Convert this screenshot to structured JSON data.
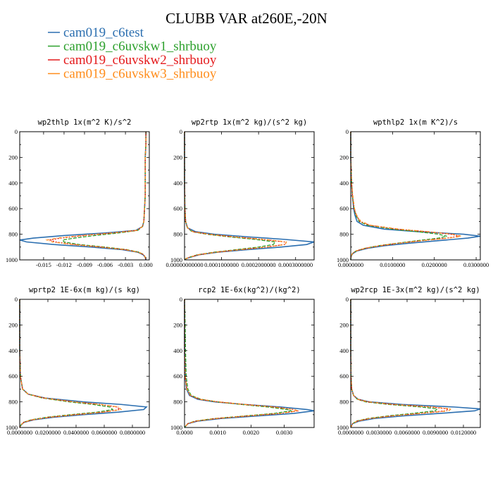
{
  "title": "CLUBB VAR at260E,-20N",
  "legend": [
    {
      "name": "cam019_c6test",
      "color": "#2c6fb0",
      "dash": ""
    },
    {
      "name": "cam019_c6uvskw1_shrbuoy",
      "color": "#2ca02c",
      "dash": "5,2"
    },
    {
      "name": "cam019_c6uvskw2_shrbuoy",
      "color": "#e41a1c",
      "dash": "2,2"
    },
    {
      "name": "cam019_c6uvskw3_shrbuoy",
      "color": "#ff8c1a",
      "dash": "4,2,1,2"
    }
  ],
  "chart_data": [
    {
      "type": "line",
      "title": "wp2thlp  1x(m^2 K)/s^2",
      "xlim": [
        -0.0185,
        0.0005
      ],
      "ylim": [
        1000,
        0
      ],
      "yticks": [
        0,
        200,
        400,
        600,
        800,
        1000
      ],
      "xticks": [
        -0.015,
        -0.012,
        -0.009,
        -0.006,
        -0.003,
        0.0
      ],
      "xtick_labels": [
        "-0.015",
        "-0.012",
        "-0.009",
        "-0.006",
        "-0.003",
        "0.000"
      ],
      "y": [
        0,
        100,
        200,
        300,
        400,
        500,
        600,
        700,
        740,
        770,
        790,
        810,
        830,
        845,
        860,
        880,
        900,
        920,
        940,
        960,
        980,
        1000
      ],
      "series": [
        {
          "name": "cam019_c6test",
          "values": [
            0.0,
            0.0,
            -0.0001,
            -0.0001,
            -0.0001,
            -0.0001,
            -0.0002,
            -0.0003,
            -0.0005,
            -0.0015,
            -0.006,
            -0.012,
            -0.0165,
            -0.0185,
            -0.0175,
            -0.0135,
            -0.008,
            -0.0035,
            -0.0012,
            -0.0004,
            -0.0001,
            0.0
          ]
        },
        {
          "name": "cam019_c6uvskw1_shrbuoy",
          "values": [
            0.0,
            0.0,
            -0.0001,
            -0.0001,
            -0.0001,
            -0.0001,
            -0.0002,
            -0.0003,
            -0.0005,
            -0.0012,
            -0.004,
            -0.0075,
            -0.0105,
            -0.0122,
            -0.012,
            -0.0098,
            -0.006,
            -0.0028,
            -0.001,
            -0.0003,
            -0.0001,
            0.0
          ]
        },
        {
          "name": "cam019_c6uvskw2_shrbuoy",
          "values": [
            0.0,
            0.0,
            -0.0001,
            -0.0001,
            -0.0001,
            -0.0001,
            -0.0002,
            -0.0003,
            -0.0005,
            -0.0013,
            -0.0048,
            -0.009,
            -0.0125,
            -0.014,
            -0.0133,
            -0.0105,
            -0.0065,
            -0.003,
            -0.0011,
            -0.0003,
            -0.0001,
            0.0
          ]
        },
        {
          "name": "cam019_c6uvskw3_shrbuoy",
          "values": [
            0.0,
            0.0,
            -0.0001,
            -0.0001,
            -0.0001,
            -0.0001,
            -0.0002,
            -0.0003,
            -0.0005,
            -0.0014,
            -0.005,
            -0.0095,
            -0.013,
            -0.0145,
            -0.0137,
            -0.0108,
            -0.0067,
            -0.0031,
            -0.0011,
            -0.0003,
            -0.0001,
            0.0
          ]
        }
      ]
    },
    {
      "type": "line",
      "title": "wp2rtp  1x(m^2 kg)/(s^2 kg)",
      "xlim": [
        0,
        0.00035
      ],
      "ylim": [
        1000,
        0
      ],
      "yticks": [
        0,
        200,
        400,
        600,
        800,
        1000
      ],
      "xticks": [
        0,
        0.0001,
        0.0002,
        0.0003
      ],
      "xtick_labels": [
        "0.00000000000",
        "0.0001000000",
        "0.0002000000",
        "0.0003000000"
      ],
      "y": [
        0,
        200,
        400,
        600,
        700,
        750,
        780,
        800,
        820,
        840,
        860,
        880,
        900,
        920,
        940,
        960,
        980,
        990,
        1000
      ],
      "series": [
        {
          "name": "cam019_c6test",
          "values": [
            0,
            0,
            0,
            1e-06,
            3e-06,
            8e-06,
            3e-05,
            8e-05,
            0.00017,
            0.00027,
            0.00035,
            0.00033,
            0.00026,
            0.00017,
            9e-05,
            4e-05,
            1.5e-05,
            5e-06,
            0.0
          ]
        },
        {
          "name": "cam019_c6uvskw1_shrbuoy",
          "values": [
            0,
            0,
            0,
            1e-06,
            3e-06,
            8e-06,
            2e-05,
            6e-05,
            0.00012,
            0.00019,
            0.000245,
            0.00024,
            0.0002,
            0.00014,
            8e-05,
            3.5e-05,
            1.2e-05,
            4e-06,
            0.0
          ]
        },
        {
          "name": "cam019_c6uvskw2_shrbuoy",
          "values": [
            0,
            0,
            0,
            1e-06,
            3e-06,
            8e-06,
            2.2e-05,
            6.5e-05,
            0.00013,
            0.00021,
            0.00027,
            0.00027,
            0.00022,
            0.00015,
            8.5e-05,
            3.7e-05,
            1.3e-05,
            4e-06,
            0.0
          ]
        },
        {
          "name": "cam019_c6uvskw3_shrbuoy",
          "values": [
            0,
            0,
            0,
            1e-06,
            3e-06,
            8e-06,
            2.3e-05,
            6.8e-05,
            0.000135,
            0.000215,
            0.000275,
            0.000272,
            0.000222,
            0.000152,
            8.6e-05,
            3.8e-05,
            1.3e-05,
            4e-06,
            0.0
          ]
        }
      ]
    },
    {
      "type": "line",
      "title": "wpthlp2  1x(m K^2)/s",
      "xlim": [
        0,
        0.031
      ],
      "ylim": [
        1000,
        0
      ],
      "yticks": [
        0,
        200,
        400,
        600,
        800,
        1000
      ],
      "xticks": [
        0,
        0.01,
        0.02,
        0.03
      ],
      "xtick_labels": [
        "0.0000000",
        "0.0100000",
        "0.0200000",
        "0.0300000"
      ],
      "y": [
        0,
        200,
        400,
        500,
        600,
        650,
        700,
        730,
        760,
        780,
        800,
        815,
        830,
        850,
        870,
        890,
        910,
        930,
        950,
        970,
        1000
      ],
      "series": [
        {
          "name": "cam019_c6test",
          "values": [
            0,
            0,
            0.0002,
            0.0004,
            0.0007,
            0.001,
            0.0015,
            0.003,
            0.008,
            0.016,
            0.027,
            0.031,
            0.028,
            0.021,
            0.014,
            0.008,
            0.004,
            0.0015,
            0.0005,
            0.0001,
            0
          ]
        },
        {
          "name": "cam019_c6uvskw1_shrbuoy",
          "values": [
            0,
            0,
            0.0002,
            0.0004,
            0.0008,
            0.0012,
            0.002,
            0.004,
            0.01,
            0.016,
            0.021,
            0.023,
            0.021,
            0.016,
            0.011,
            0.0065,
            0.0033,
            0.0013,
            0.0004,
            0.0001,
            0
          ]
        },
        {
          "name": "cam019_c6uvskw2_shrbuoy",
          "values": [
            0,
            0,
            0.0002,
            0.0004,
            0.0008,
            0.0013,
            0.0022,
            0.0045,
            0.011,
            0.018,
            0.024,
            0.026,
            0.023,
            0.017,
            0.0115,
            0.0068,
            0.0034,
            0.0013,
            0.0004,
            0.0001,
            0
          ]
        },
        {
          "name": "cam019_c6uvskw3_shrbuoy",
          "values": [
            0,
            0,
            0.0002,
            0.0005,
            0.0009,
            0.0014,
            0.0024,
            0.0048,
            0.0115,
            0.0185,
            0.0245,
            0.0265,
            0.0235,
            0.0172,
            0.0116,
            0.0069,
            0.0034,
            0.0013,
            0.0004,
            0.0001,
            0
          ]
        }
      ]
    },
    {
      "type": "line",
      "title": "wprtp2  1E-6x(m kg)/(s kg)",
      "xlim": [
        0,
        0.092
      ],
      "ylim": [
        1000,
        0
      ],
      "yticks": [
        0,
        200,
        400,
        600,
        800,
        1000
      ],
      "xticks": [
        0,
        0.02,
        0.04,
        0.06,
        0.08
      ],
      "xtick_labels": [
        "0.0000000",
        "0.0200000",
        "0.0400000",
        "0.0600000",
        "0.0800000"
      ],
      "y": [
        0,
        200,
        400,
        600,
        700,
        740,
        770,
        800,
        820,
        840,
        860,
        880,
        900,
        920,
        940,
        960,
        980,
        1000
      ],
      "series": [
        {
          "name": "cam019_c6test",
          "values": [
            0,
            0,
            0,
            0.0005,
            0.002,
            0.006,
            0.018,
            0.045,
            0.072,
            0.09,
            0.088,
            0.07,
            0.045,
            0.024,
            0.01,
            0.003,
            0.001,
            0
          ]
        },
        {
          "name": "cam019_c6uvskw1_shrbuoy",
          "values": [
            0,
            0,
            0,
            0.0005,
            0.002,
            0.006,
            0.016,
            0.035,
            0.052,
            0.064,
            0.066,
            0.055,
            0.036,
            0.019,
            0.008,
            0.0025,
            0.0008,
            0
          ]
        },
        {
          "name": "cam019_c6uvskw2_shrbuoy",
          "values": [
            0,
            0,
            0,
            0.0005,
            0.002,
            0.006,
            0.017,
            0.038,
            0.057,
            0.069,
            0.071,
            0.059,
            0.039,
            0.021,
            0.009,
            0.0028,
            0.0009,
            0
          ]
        },
        {
          "name": "cam019_c6uvskw3_shrbuoy",
          "values": [
            0,
            0,
            0,
            0.0005,
            0.002,
            0.006,
            0.0175,
            0.039,
            0.058,
            0.07,
            0.072,
            0.06,
            0.04,
            0.021,
            0.009,
            0.0028,
            0.0009,
            0
          ]
        }
      ]
    },
    {
      "type": "line",
      "title": "rcp2  1E-6x(kg^2)/(kg^2)",
      "xlim": [
        0,
        0.0039
      ],
      "ylim": [
        1000,
        0
      ],
      "yticks": [
        0,
        200,
        400,
        600,
        800,
        1000
      ],
      "xticks": [
        0,
        0.001,
        0.002,
        0.003
      ],
      "xtick_labels": [
        "0.0000",
        "0.0010",
        "0.0020",
        "0.0030"
      ],
      "y": [
        0,
        200,
        400,
        500,
        600,
        700,
        750,
        780,
        800,
        820,
        840,
        860,
        870,
        890,
        910,
        930,
        950,
        970,
        1000
      ],
      "series": [
        {
          "name": "cam019_c6test",
          "values": [
            0,
            0,
            0,
            1e-05,
            2e-05,
            6e-05,
            0.00015,
            0.0004,
            0.0009,
            0.0018,
            0.0029,
            0.0037,
            0.0039,
            0.0033,
            0.0022,
            0.0011,
            0.0004,
            0.0001,
            0
          ]
        },
        {
          "name": "cam019_c6uvskw1_shrbuoy",
          "values": [
            0,
            2e-05,
            3e-05,
            4e-05,
            5e-05,
            0.0001,
            0.0002,
            0.0005,
            0.001,
            0.0017,
            0.0025,
            0.0031,
            0.0032,
            0.0027,
            0.0018,
            0.0009,
            0.0003,
            0.0001,
            0
          ]
        },
        {
          "name": "cam019_c6uvskw2_shrbuoy",
          "values": [
            0,
            0,
            0,
            1e-05,
            2e-05,
            7e-05,
            0.00017,
            0.00045,
            0.001,
            0.0018,
            0.0027,
            0.0033,
            0.0034,
            0.0029,
            0.0019,
            0.00095,
            0.00035,
            0.0001,
            0
          ]
        },
        {
          "name": "cam019_c6uvskw3_shrbuoy",
          "values": [
            0,
            0,
            0,
            1e-05,
            2e-05,
            7e-05,
            0.00018,
            0.00046,
            0.001,
            0.0018,
            0.0027,
            0.0033,
            0.0034,
            0.0029,
            0.0019,
            0.00095,
            0.00035,
            0.0001,
            0
          ]
        }
      ]
    },
    {
      "type": "line",
      "title": "wp2rcp  1E-3x(m^2 kg)/(s^2 kg)",
      "xlim": [
        0,
        0.0138
      ],
      "ylim": [
        1000,
        0
      ],
      "yticks": [
        0,
        200,
        400,
        600,
        800,
        1000
      ],
      "xticks": [
        0,
        0.003,
        0.006,
        0.009,
        0.012
      ],
      "xtick_labels": [
        "0.0000000",
        "0.0030000",
        "0.0060000",
        "0.0090000",
        "0.0120000"
      ],
      "y": [
        0,
        200,
        400,
        600,
        700,
        750,
        780,
        800,
        820,
        840,
        855,
        870,
        890,
        910,
        930,
        950,
        970,
        1000
      ],
      "series": [
        {
          "name": "cam019_c6test",
          "values": [
            0,
            0,
            0,
            3e-05,
            0.0001,
            0.0003,
            0.0008,
            0.002,
            0.0055,
            0.011,
            0.0138,
            0.0132,
            0.0095,
            0.0055,
            0.0025,
            0.0009,
            0.0002,
            0
          ]
        },
        {
          "name": "cam019_c6uvskw1_shrbuoy",
          "values": [
            0,
            0,
            0,
            3e-05,
            0.0001,
            0.0003,
            0.0007,
            0.0016,
            0.004,
            0.0075,
            0.0092,
            0.009,
            0.0066,
            0.0039,
            0.0018,
            0.0006,
            0.0002,
            0
          ]
        },
        {
          "name": "cam019_c6uvskw2_shrbuoy",
          "values": [
            0,
            0,
            0,
            3e-05,
            0.0001,
            0.0003,
            0.00075,
            0.0018,
            0.0045,
            0.0085,
            0.0104,
            0.0101,
            0.0074,
            0.0043,
            0.002,
            0.0007,
            0.0002,
            0
          ]
        },
        {
          "name": "cam019_c6uvskw3_shrbuoy",
          "values": [
            0,
            0,
            0,
            3e-05,
            0.0001,
            0.0003,
            0.00078,
            0.0019,
            0.0047,
            0.0088,
            0.0107,
            0.0104,
            0.0076,
            0.0044,
            0.002,
            0.0007,
            0.0002,
            0
          ]
        }
      ]
    }
  ]
}
